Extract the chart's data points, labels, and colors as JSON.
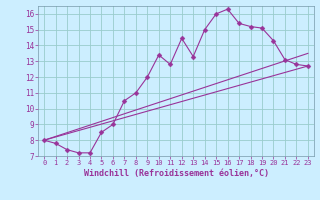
{
  "xlabel": "Windchill (Refroidissement éolien,°C)",
  "bg_color": "#cceeff",
  "line_color": "#993399",
  "grid_color": "#99cccc",
  "xlim": [
    -0.5,
    23.5
  ],
  "ylim": [
    7,
    16.5
  ],
  "xticks": [
    0,
    1,
    2,
    3,
    4,
    5,
    6,
    7,
    8,
    9,
    10,
    11,
    12,
    13,
    14,
    15,
    16,
    17,
    18,
    19,
    20,
    21,
    22,
    23
  ],
  "yticks": [
    7,
    8,
    9,
    10,
    11,
    12,
    13,
    14,
    15,
    16
  ],
  "line1_x": [
    0,
    1,
    2,
    3,
    4,
    5,
    6,
    7,
    8,
    9,
    10,
    11,
    12,
    13,
    14,
    15,
    16,
    17,
    18,
    19,
    20,
    21,
    22,
    23
  ],
  "line1_y": [
    8.0,
    7.8,
    7.4,
    7.2,
    7.2,
    8.5,
    9.0,
    10.5,
    11.0,
    12.0,
    13.4,
    12.8,
    14.45,
    13.3,
    15.0,
    16.0,
    16.3,
    15.4,
    15.2,
    15.1,
    14.3,
    13.1,
    12.8,
    12.7
  ],
  "line2_x": [
    0,
    23
  ],
  "line2_y": [
    8.0,
    12.7
  ],
  "line3_x": [
    0,
    23
  ],
  "line3_y": [
    8.0,
    13.5
  ],
  "marker": "D",
  "markersize": 2.5,
  "xlabel_fontsize": 6,
  "tick_fontsize": 5
}
